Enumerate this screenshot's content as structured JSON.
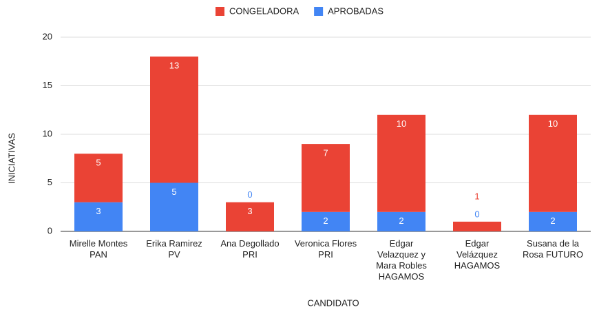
{
  "chart_data": {
    "type": "stacked_bar",
    "x_label": "CANDIDATO",
    "y_label": "INICIATIVAS",
    "categories": [
      "Mirelle Montes PAN",
      "Erika Ramirez PV",
      "Ana Degollado PRI",
      "Veronica Flores PRI",
      "Edgar Velazquez y Mara Robles HAGAMOS",
      "Edgar Velázquez HAGAMOS",
      "Susana de la Rosa FUTURO"
    ],
    "series": [
      {
        "name": "APROBADAS",
        "color": "#4285f4",
        "values": [
          3,
          5,
          0,
          2,
          2,
          0,
          2
        ]
      },
      {
        "name": "CONGELADORA",
        "color": "#ea4335",
        "values": [
          5,
          13,
          3,
          7,
          10,
          1,
          10
        ]
      }
    ],
    "legend_order": [
      1,
      0
    ],
    "ylim": [
      0,
      20
    ],
    "yticks": [
      0,
      5,
      10,
      15,
      20
    ],
    "grid": true
  }
}
